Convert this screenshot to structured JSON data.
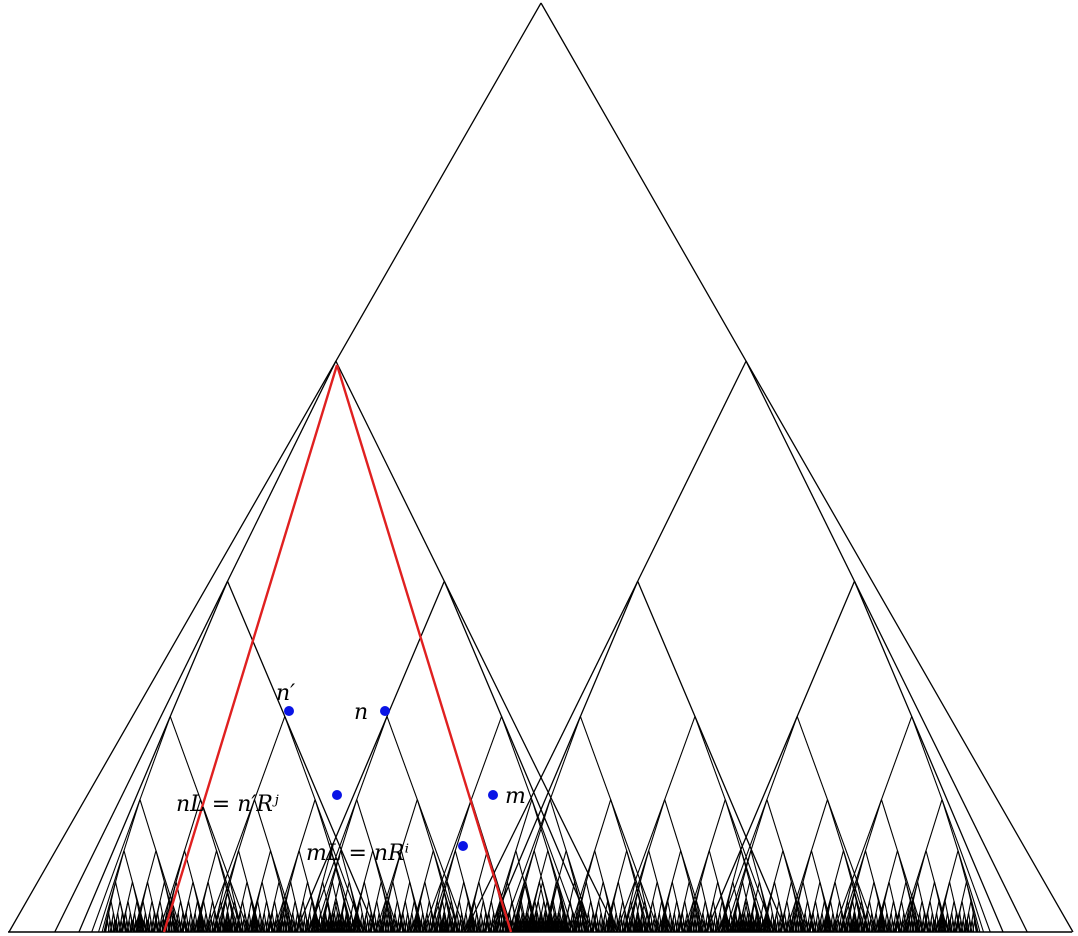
{
  "diagram": {
    "type": "recursive-binary-tree",
    "tree_depth": 9,
    "line_color": "#000000",
    "highlight_color": "#e02020",
    "node_color": "#0a14e6",
    "background": "#ffffff"
  },
  "nodes": [
    {
      "id": "n_prime",
      "label": "n′"
    },
    {
      "id": "n",
      "label": "n"
    },
    {
      "id": "m",
      "label": "m"
    },
    {
      "id": "nL",
      "label": "nL = n′Rʲ"
    },
    {
      "id": "mL",
      "label": "mL = nRⁱ"
    }
  ]
}
